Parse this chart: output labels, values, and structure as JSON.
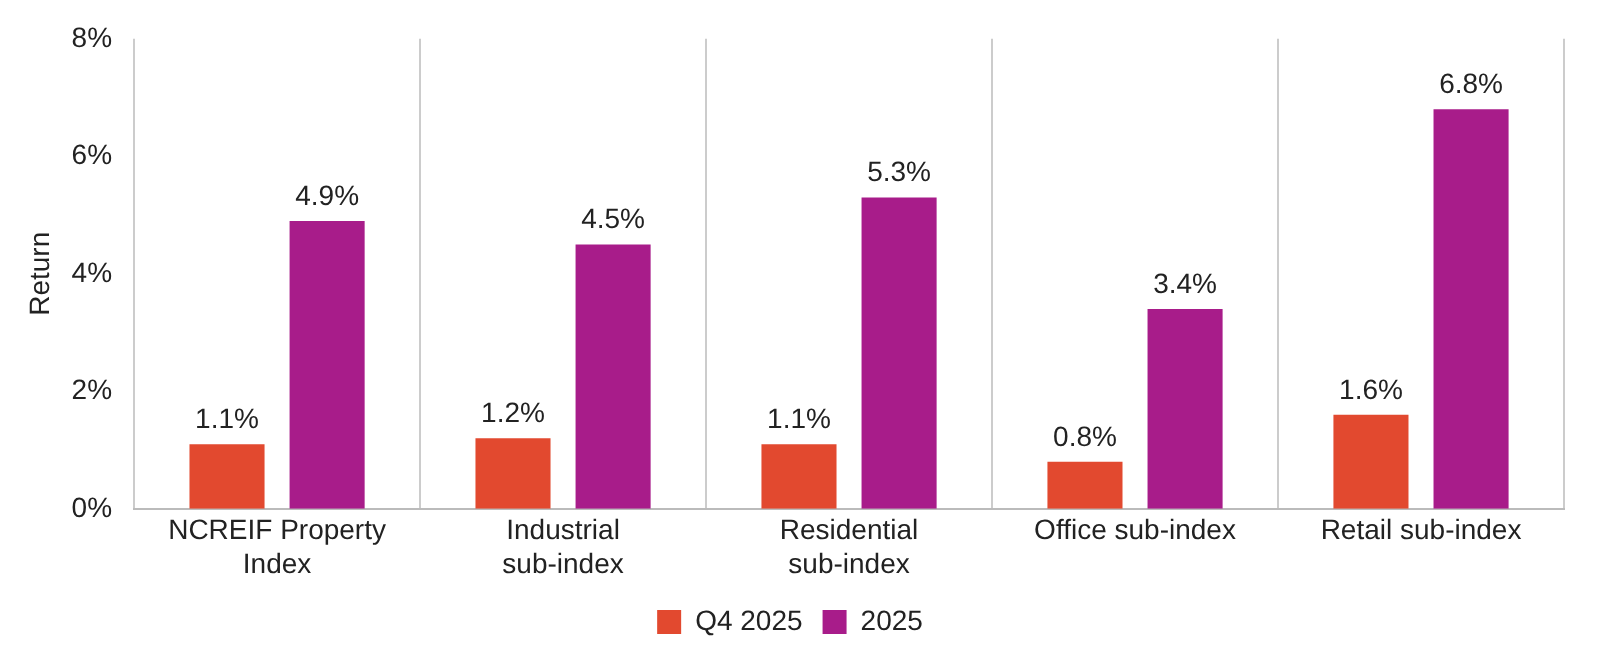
{
  "chart_data": {
    "type": "bar",
    "ylabel": "Return",
    "categories": [
      "NCREIF Property Index",
      "Industrial sub-index",
      "Residential sub-index",
      "Office sub-index",
      "Retail sub-index"
    ],
    "series": [
      {
        "name": "Q4 2025",
        "color": "#e2492f",
        "values": [
          1.1,
          1.2,
          1.1,
          0.8,
          1.6
        ],
        "value_labels": [
          "1.1%",
          "1.2%",
          "1.1%",
          "0.8%",
          "1.6%"
        ]
      },
      {
        "name": "2025",
        "color": "#a81c8a",
        "values": [
          4.9,
          4.5,
          5.3,
          3.4,
          6.8
        ],
        "value_labels": [
          "4.9%",
          "4.5%",
          "5.3%",
          "3.4%",
          "6.8%"
        ]
      }
    ],
    "ylim": [
      0,
      8
    ],
    "yticks": [
      {
        "value": 0,
        "label": "0%"
      },
      {
        "value": 2,
        "label": "2%"
      },
      {
        "value": 4,
        "label": "4%"
      },
      {
        "value": 6,
        "label": "6%"
      },
      {
        "value": 8,
        "label": "8%"
      }
    ],
    "grid": "x",
    "legend": "bottom"
  }
}
